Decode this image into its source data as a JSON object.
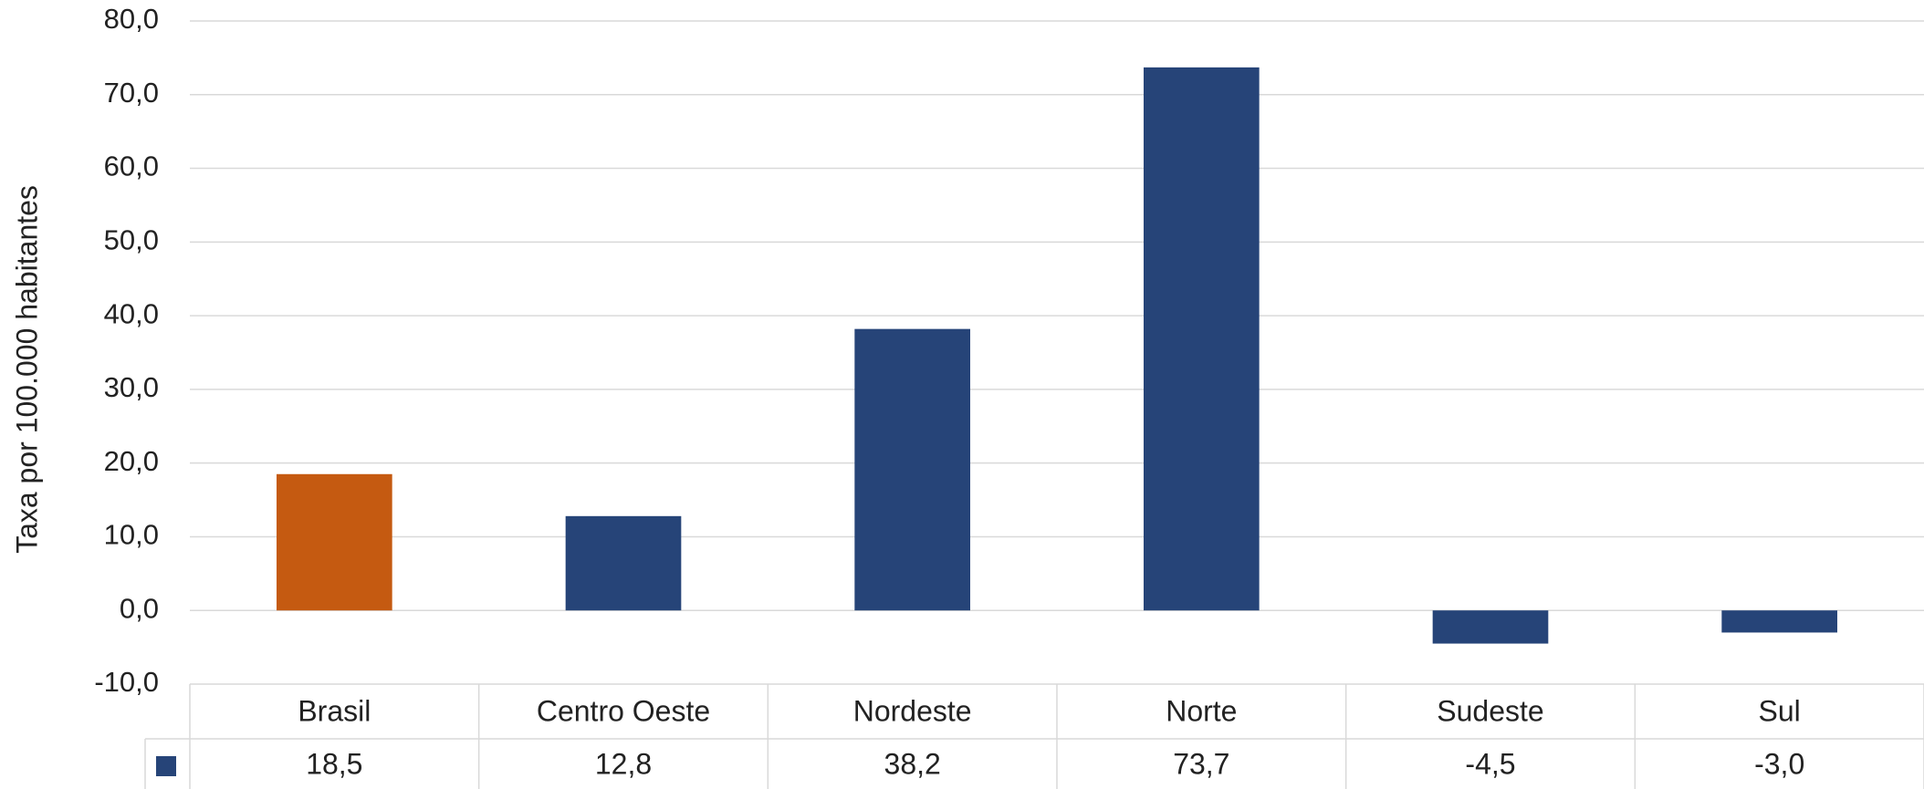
{
  "chart_data": {
    "type": "bar",
    "y_label": "Taxa por 100.000 habitantes",
    "categories": [
      "Brasil",
      "Centro Oeste",
      "Nordeste",
      "Norte",
      "Sudeste",
      "Sul"
    ],
    "values": [
      18.5,
      12.8,
      38.2,
      73.7,
      -4.5,
      -3.0
    ],
    "value_labels": [
      "18,5",
      "12,8",
      "38,2",
      "73,7",
      "-4,5",
      "-3,0"
    ],
    "colors": [
      "#c55a11",
      "#264478",
      "#264478",
      "#264478",
      "#264478",
      "#264478"
    ],
    "legend_color": "#264478",
    "ylim": [
      -10,
      80
    ],
    "yticks": [
      {
        "value": -10,
        "label": "-10,0"
      },
      {
        "value": 0,
        "label": "0,0"
      },
      {
        "value": 10,
        "label": "10,0"
      },
      {
        "value": 20,
        "label": "20,0"
      },
      {
        "value": 30,
        "label": "30,0"
      },
      {
        "value": 40,
        "label": "40,0"
      },
      {
        "value": 50,
        "label": "50,0"
      },
      {
        "value": 60,
        "label": "60,0"
      },
      {
        "value": 70,
        "label": "70,0"
      },
      {
        "value": 80,
        "label": "80,0"
      }
    ],
    "grid": true
  }
}
